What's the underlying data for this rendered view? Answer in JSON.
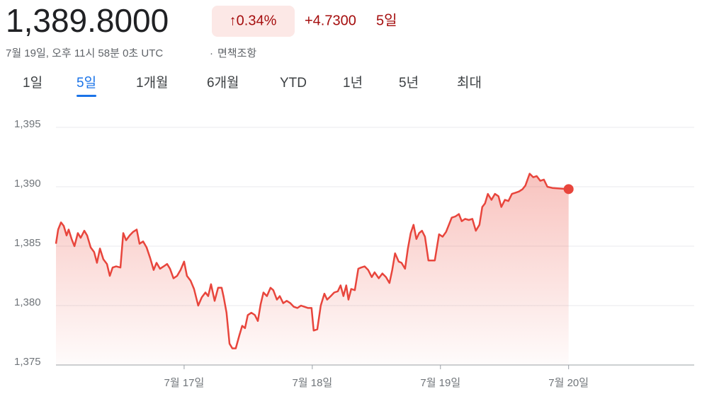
{
  "header": {
    "price": "1,389.8000",
    "change_percent": "↑0.34%",
    "change": "+4.7300",
    "period": "5일",
    "timestamp": "7월 19일, 오후 11시 58분 0초 UTC",
    "separator": "·",
    "disclaimer": "면책조항"
  },
  "tabs": {
    "items": [
      "1일",
      "5일",
      "1개월",
      "6개월",
      "YTD",
      "1년",
      "5년",
      "최대"
    ],
    "selected": 1
  },
  "chart_data": {
    "type": "line",
    "color": "#e8453c",
    "grid": true,
    "xlim": [
      16,
      20.98
    ],
    "ylim": [
      1375,
      1395
    ],
    "xticks": [
      {
        "value": 17,
        "label": "7월 17일"
      },
      {
        "value": 18,
        "label": "7월 18일"
      },
      {
        "value": 19,
        "label": "7월 19일"
      },
      {
        "value": 20,
        "label": "7월 20일"
      }
    ],
    "yticks": [
      {
        "value": 1375,
        "label": "1,375"
      },
      {
        "value": 1380,
        "label": "1,380"
      },
      {
        "value": 1385,
        "label": "1,385"
      },
      {
        "value": 1390,
        "label": "1,390"
      },
      {
        "value": 1395,
        "label": "1,395"
      }
    ],
    "x": [
      16.0,
      16.017,
      16.039,
      16.061,
      16.083,
      16.099,
      16.122,
      16.144,
      16.171,
      16.193,
      16.221,
      16.243,
      16.271,
      16.298,
      16.32,
      16.343,
      16.37,
      16.398,
      16.42,
      16.442,
      16.47,
      16.503,
      16.525,
      16.547,
      16.575,
      16.602,
      16.63,
      16.652,
      16.68,
      16.707,
      16.735,
      16.762,
      16.785,
      16.812,
      16.84,
      16.867,
      16.89,
      16.917,
      16.945,
      16.972,
      17.0,
      17.022,
      17.05,
      17.077,
      17.11,
      17.138,
      17.166,
      17.188,
      17.21,
      17.238,
      17.265,
      17.293,
      17.309,
      17.331,
      17.354,
      17.376,
      17.403,
      17.431,
      17.453,
      17.475,
      17.497,
      17.525,
      17.552,
      17.575,
      17.597,
      17.619,
      17.646,
      17.674,
      17.696,
      17.724,
      17.746,
      17.773,
      17.801,
      17.829,
      17.856,
      17.884,
      17.912,
      17.939,
      17.967,
      17.994,
      18.011,
      18.039,
      18.066,
      18.094,
      18.116,
      18.144,
      18.171,
      18.199,
      18.221,
      18.243,
      18.265,
      18.282,
      18.304,
      18.332,
      18.359,
      18.381,
      18.409,
      18.436,
      18.464,
      18.486,
      18.519,
      18.547,
      18.575,
      18.602,
      18.624,
      18.646,
      18.674,
      18.696,
      18.724,
      18.746,
      18.768,
      18.79,
      18.812,
      18.834,
      18.856,
      18.879,
      18.906,
      18.956,
      18.989,
      19.017,
      19.044,
      19.066,
      19.088,
      19.116,
      19.144,
      19.166,
      19.193,
      19.221,
      19.249,
      19.276,
      19.304,
      19.326,
      19.348,
      19.37,
      19.398,
      19.425,
      19.453,
      19.475,
      19.503,
      19.53,
      19.558,
      19.586,
      19.613,
      19.641,
      19.663,
      19.696,
      19.724,
      19.751,
      19.779,
      19.807,
      19.834,
      19.873,
      20.0
    ],
    "values": [
      1385.2,
      1386.4,
      1387.0,
      1386.7,
      1385.9,
      1386.4,
      1385.6,
      1385.0,
      1386.1,
      1385.7,
      1386.3,
      1385.9,
      1384.9,
      1384.5,
      1383.6,
      1384.8,
      1383.9,
      1383.5,
      1382.5,
      1383.2,
      1383.3,
      1383.2,
      1386.1,
      1385.5,
      1385.9,
      1386.2,
      1386.4,
      1385.2,
      1385.4,
      1384.9,
      1384.0,
      1383.0,
      1383.6,
      1383.1,
      1383.3,
      1383.5,
      1383.1,
      1382.3,
      1382.5,
      1383.0,
      1383.7,
      1382.5,
      1382.1,
      1381.4,
      1380.0,
      1380.7,
      1381.1,
      1380.8,
      1381.8,
      1380.4,
      1381.5,
      1381.5,
      1380.7,
      1379.4,
      1376.8,
      1376.4,
      1376.4,
      1377.5,
      1378.3,
      1378.1,
      1379.2,
      1379.4,
      1379.2,
      1378.7,
      1380.1,
      1381.1,
      1380.8,
      1381.5,
      1381.3,
      1380.5,
      1380.8,
      1380.2,
      1380.4,
      1380.2,
      1379.9,
      1379.8,
      1380.0,
      1379.9,
      1379.8,
      1379.8,
      1377.9,
      1378.0,
      1380.0,
      1381.0,
      1380.5,
      1380.8,
      1381.1,
      1381.2,
      1381.7,
      1380.8,
      1381.7,
      1380.5,
      1381.4,
      1381.3,
      1383.1,
      1383.2,
      1383.3,
      1383.0,
      1382.4,
      1382.8,
      1382.3,
      1382.7,
      1382.4,
      1381.9,
      1383.0,
      1384.4,
      1383.7,
      1383.6,
      1383.1,
      1384.8,
      1386.1,
      1386.8,
      1385.6,
      1386.1,
      1386.3,
      1385.8,
      1383.8,
      1383.8,
      1386.0,
      1385.8,
      1386.2,
      1386.8,
      1387.4,
      1387.5,
      1387.7,
      1387.1,
      1387.3,
      1387.2,
      1387.3,
      1386.3,
      1386.8,
      1388.3,
      1388.6,
      1389.4,
      1388.9,
      1389.4,
      1389.2,
      1388.3,
      1388.9,
      1388.8,
      1389.4,
      1389.5,
      1389.6,
      1389.8,
      1390.1,
      1391.1,
      1390.8,
      1390.9,
      1390.5,
      1390.6,
      1390.0,
      1389.9,
      1389.8
    ]
  }
}
